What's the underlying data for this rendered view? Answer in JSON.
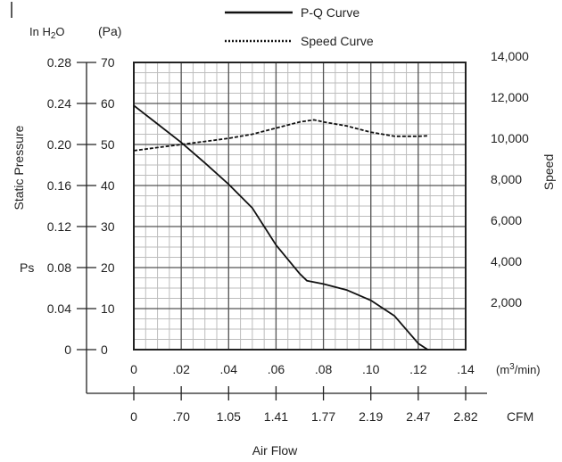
{
  "chart_data": {
    "type": "line",
    "legend": {
      "placement": "top-center",
      "entries": [
        {
          "label": "P-Q Curve",
          "style": "solid"
        },
        {
          "label": "Speed Curve",
          "style": "dotted"
        }
      ]
    },
    "units": {
      "left_outer": "In H2O",
      "left_inner": "(Pa)",
      "flow_m3": "(m3/min)",
      "flow_cfm": "CFM"
    },
    "axes": {
      "y_left_label": "Static Pressure",
      "y_left_symbol": "Ps",
      "y_right_label": "Speed",
      "x_label": "Air Flow",
      "pa_ticks": [
        "0",
        "10",
        "20",
        "30",
        "40",
        "50",
        "60",
        "70"
      ],
      "inh2o_ticks": [
        "0",
        "0.04",
        "0.08",
        "0.12",
        "0.16",
        "0.20",
        "0.24",
        "0.28"
      ],
      "speed_ticks": [
        "2,000",
        "4,000",
        "6,000",
        "8,000",
        "10,000",
        "12,000",
        "14,000"
      ],
      "m3_ticks": [
        "0",
        ".02",
        ".04",
        ".06",
        ".08",
        ".10",
        ".12",
        ".14"
      ],
      "cfm_ticks": [
        "0",
        ".70",
        "1.05",
        "1.41",
        "1.77",
        "2.19",
        "2.47",
        "2.82"
      ],
      "x_range": [
        0,
        0.14
      ],
      "pa_range": [
        0,
        70
      ],
      "speed_range": [
        0,
        14000
      ],
      "grid": true
    },
    "series": [
      {
        "name": "P-Q Curve",
        "axis": "pressure",
        "x": [
          0,
          0.01,
          0.02,
          0.03,
          0.04,
          0.05,
          0.06,
          0.07,
          0.073,
          0.08,
          0.09,
          0.1,
          0.11,
          0.12,
          0.124
        ],
        "y": [
          59.5,
          55,
          50.5,
          45.5,
          40.3,
          34.5,
          25.5,
          18.5,
          16.8,
          16,
          14.5,
          12,
          8.2,
          1.5,
          0
        ]
      },
      {
        "name": "Speed Curve",
        "axis": "speed",
        "x": [
          0,
          0.01,
          0.02,
          0.03,
          0.04,
          0.05,
          0.06,
          0.07,
          0.076,
          0.08,
          0.09,
          0.1,
          0.11,
          0.12,
          0.124
        ],
        "y": [
          9700,
          9850,
          10000,
          10150,
          10300,
          10500,
          10800,
          11100,
          11200,
          11100,
          10900,
          10600,
          10400,
          10400,
          10420
        ]
      }
    ]
  }
}
